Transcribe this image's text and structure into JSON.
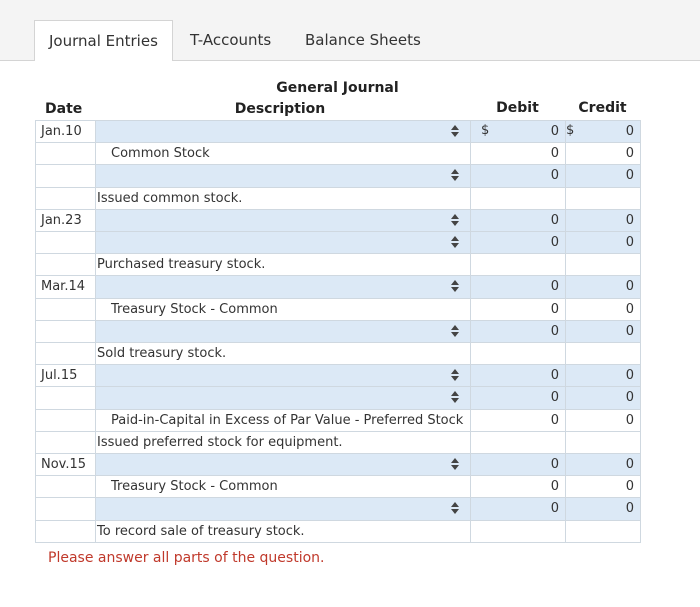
{
  "tabs": [
    "Journal Entries",
    "T-Accounts",
    "Balance Sheets"
  ],
  "journal": {
    "title": "General Journal",
    "headers": {
      "date": "Date",
      "description": "Description",
      "debit": "Debit",
      "credit": "Credit"
    },
    "currency": "$",
    "rows": [
      {
        "date": "Jan.10",
        "debit": 0,
        "credit": 0
      },
      {
        "description": "Common Stock",
        "debit": 0,
        "credit": 0
      },
      {
        "debit": 0,
        "credit": 0
      },
      {
        "description": "Issued common stock."
      },
      {
        "date": "Jan.23",
        "debit": 0,
        "credit": 0
      },
      {
        "debit": 0,
        "credit": 0
      },
      {
        "description": "Purchased treasury stock."
      },
      {
        "date": "Mar.14",
        "debit": 0,
        "credit": 0
      },
      {
        "description": "Treasury Stock - Common",
        "debit": 0,
        "credit": 0
      },
      {
        "debit": 0,
        "credit": 0
      },
      {
        "description": "Sold treasury stock."
      },
      {
        "date": "Jul.15",
        "debit": 0,
        "credit": 0
      },
      {
        "debit": 0,
        "credit": 0
      },
      {
        "description": "Paid-in-Capital in Excess of Par Value - Preferred Stock",
        "debit": 0,
        "credit": 0
      },
      {
        "description": "Issued preferred stock for equipment."
      },
      {
        "date": "Nov.15",
        "debit": 0,
        "credit": 0
      },
      {
        "description": "Treasury Stock - Common",
        "debit": 0,
        "credit": 0
      },
      {
        "debit": 0,
        "credit": 0
      },
      {
        "description": "To record sale of treasury stock."
      }
    ]
  },
  "footer": "Please answer all parts of the question."
}
